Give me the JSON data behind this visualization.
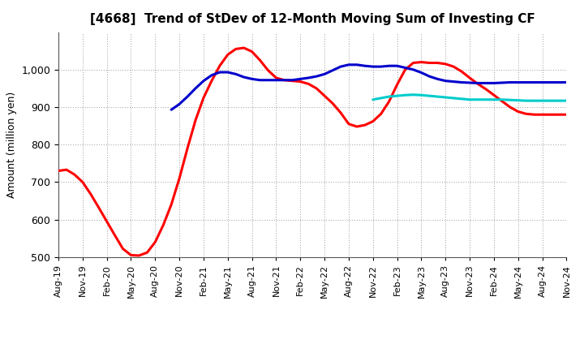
{
  "title": "[4668]  Trend of StDev of 12-Month Moving Sum of Investing CF",
  "ylabel": "Amount (million yen)",
  "ylim": [
    500,
    1100
  ],
  "yticks": [
    500,
    600,
    700,
    800,
    900,
    1000
  ],
  "background_color": "#ffffff",
  "grid_color": "#999999",
  "series": {
    "3yr": {
      "color": "#ff0000",
      "x": [
        0,
        1,
        2,
        3,
        4,
        5,
        6,
        7,
        8,
        9,
        10,
        11,
        12,
        13,
        14,
        15,
        16,
        17,
        18,
        19,
        20,
        21,
        22,
        23,
        24,
        25,
        26,
        27,
        28,
        29,
        30,
        31,
        32,
        33,
        34,
        35,
        36,
        37,
        38,
        39,
        40,
        41,
        42,
        43,
        44,
        45,
        46,
        47,
        48,
        49,
        50,
        51,
        52,
        53,
        54,
        55,
        56,
        57,
        58,
        59,
        60,
        61,
        62,
        63
      ],
      "y": [
        730,
        733,
        720,
        700,
        668,
        632,
        595,
        558,
        522,
        505,
        504,
        512,
        540,
        585,
        640,
        710,
        790,
        865,
        925,
        970,
        1010,
        1040,
        1055,
        1058,
        1048,
        1025,
        998,
        978,
        972,
        970,
        968,
        962,
        950,
        930,
        910,
        885,
        855,
        848,
        852,
        862,
        882,
        915,
        960,
        1000,
        1018,
        1020,
        1018,
        1018,
        1015,
        1008,
        995,
        978,
        962,
        948,
        932,
        916,
        900,
        888,
        882,
        880,
        880,
        880,
        880,
        880
      ]
    },
    "5yr": {
      "color": "#0000cc",
      "x": [
        14,
        15,
        16,
        17,
        18,
        19,
        20,
        21,
        22,
        23,
        24,
        25,
        26,
        27,
        28,
        29,
        30,
        31,
        32,
        33,
        34,
        35,
        36,
        37,
        38,
        39,
        40,
        41,
        42,
        43,
        44,
        45,
        46,
        47,
        48,
        49,
        50,
        51,
        52,
        53,
        54,
        55,
        56,
        57,
        58,
        59,
        60,
        61,
        62,
        63
      ],
      "y": [
        893,
        908,
        928,
        950,
        970,
        985,
        993,
        993,
        988,
        980,
        975,
        972,
        972,
        972,
        972,
        972,
        975,
        978,
        982,
        988,
        998,
        1008,
        1013,
        1013,
        1010,
        1008,
        1008,
        1010,
        1010,
        1005,
        1000,
        992,
        982,
        975,
        970,
        968,
        966,
        965,
        964,
        964,
        964,
        965,
        966,
        966,
        966,
        966,
        966,
        966,
        966,
        966
      ]
    },
    "7yr": {
      "color": "#00cccc",
      "x": [
        39,
        40,
        41,
        42,
        43,
        44,
        45,
        46,
        47,
        48,
        49,
        50,
        51,
        52,
        53,
        54,
        55,
        56,
        57,
        58,
        59,
        60,
        61,
        62,
        63
      ],
      "y": [
        920,
        924,
        928,
        930,
        932,
        933,
        932,
        930,
        928,
        926,
        924,
        922,
        920,
        920,
        920,
        920,
        920,
        919,
        918,
        917,
        917,
        917,
        917,
        917,
        917
      ]
    },
    "10yr": {
      "color": "#006600",
      "x": [],
      "y": []
    }
  },
  "xtick_labels": [
    "Aug-19",
    "Nov-19",
    "Feb-20",
    "May-20",
    "Aug-20",
    "Nov-20",
    "Feb-21",
    "May-21",
    "Aug-21",
    "Nov-21",
    "Feb-22",
    "May-22",
    "Aug-22",
    "Nov-22",
    "Feb-23",
    "May-23",
    "Aug-23",
    "Nov-23",
    "Feb-24",
    "May-24",
    "Aug-24",
    "Nov-24"
  ],
  "xtick_positions": [
    0,
    3,
    6,
    9,
    12,
    15,
    18,
    21,
    24,
    27,
    30,
    33,
    36,
    39,
    42,
    45,
    48,
    51,
    54,
    57,
    60,
    63
  ]
}
